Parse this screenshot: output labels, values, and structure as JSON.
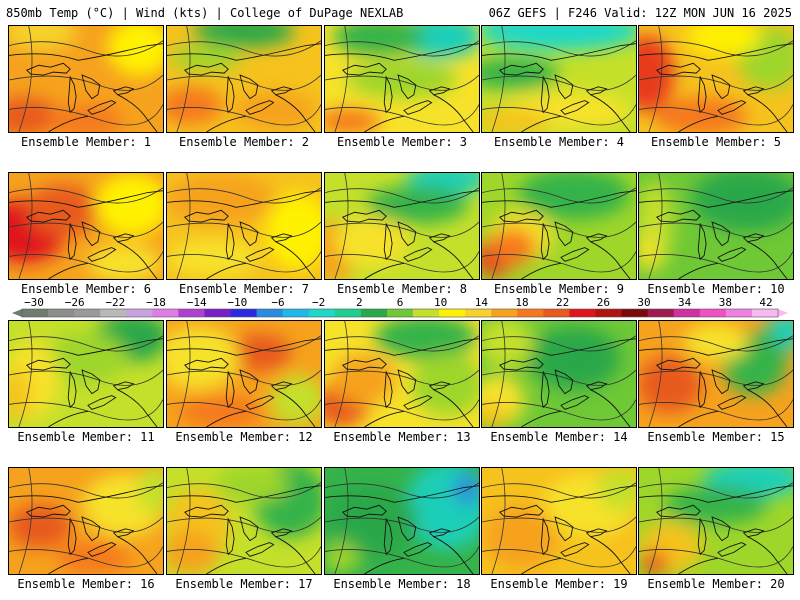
{
  "header": {
    "left": "850mb Temp (°C) | Wind (kts) | College of DuPage NEXLAB",
    "right": "06Z GEFS | F246 Valid: 12Z MON JUN 16 2025"
  },
  "panels": [
    {
      "label": "Ensemble Member: 1",
      "bg": "#f6a21e",
      "blobs": [
        [
          "#f7d22a",
          0.2,
          0.05,
          0.4,
          0.3
        ],
        [
          "#fff200",
          0.85,
          0.2,
          0.35,
          0.45
        ],
        [
          "#e85a1c",
          0.1,
          0.85,
          0.35,
          0.3
        ],
        [
          "#f6781c",
          0.5,
          0.9,
          0.4,
          0.25
        ]
      ]
    },
    {
      "label": "Ensemble Member: 2",
      "bg": "#f6c21e",
      "blobs": [
        [
          "#2aa84a",
          0.5,
          0.05,
          0.55,
          0.25
        ],
        [
          "#9ed62a",
          0.25,
          0.3,
          0.4,
          0.2
        ],
        [
          "#f6781c",
          0.15,
          0.75,
          0.35,
          0.3
        ],
        [
          "#f6a21e",
          0.7,
          0.8,
          0.45,
          0.3
        ]
      ]
    },
    {
      "label": "Ensemble Member: 3",
      "bg": "#f7e22a",
      "blobs": [
        [
          "#1fcfb8",
          0.75,
          0.1,
          0.45,
          0.35
        ],
        [
          "#36b34a",
          0.35,
          0.1,
          0.5,
          0.3
        ],
        [
          "#9ed62a",
          0.5,
          0.5,
          0.6,
          0.3
        ],
        [
          "#f6781c",
          0.15,
          0.9,
          0.35,
          0.2
        ]
      ]
    },
    {
      "label": "Ensemble Member: 4",
      "bg": "#c5e02a",
      "blobs": [
        [
          "#1fd8c8",
          0.5,
          0.05,
          0.9,
          0.3
        ],
        [
          "#36b34a",
          0.2,
          0.45,
          0.5,
          0.25
        ],
        [
          "#f7e22a",
          0.55,
          0.8,
          0.7,
          0.3
        ],
        [
          "#f6c21e",
          0.2,
          0.9,
          0.4,
          0.2
        ]
      ]
    },
    {
      "label": "Ensemble Member: 5",
      "bg": "#f6c21e",
      "blobs": [
        [
          "#e83a1c",
          0.05,
          0.45,
          0.3,
          0.6
        ],
        [
          "#9ed62a",
          0.85,
          0.3,
          0.35,
          0.5
        ],
        [
          "#fff200",
          0.55,
          0.1,
          0.4,
          0.3
        ],
        [
          "#f6781c",
          0.4,
          0.85,
          0.5,
          0.3
        ]
      ]
    },
    {
      "label": "Ensemble Member: 6",
      "bg": "#f6a21e",
      "blobs": [
        [
          "#e0141e",
          0.1,
          0.55,
          0.45,
          0.5
        ],
        [
          "#e85a1c",
          0.35,
          0.35,
          0.4,
          0.4
        ],
        [
          "#fff200",
          0.8,
          0.3,
          0.4,
          0.5
        ],
        [
          "#f7e22a",
          0.75,
          0.85,
          0.4,
          0.3
        ]
      ]
    },
    {
      "label": "Ensemble Member: 7",
      "bg": "#f6c21e",
      "blobs": [
        [
          "#f6a21e",
          0.35,
          0.25,
          0.6,
          0.4
        ],
        [
          "#fff200",
          0.85,
          0.55,
          0.35,
          0.6
        ],
        [
          "#f7e22a",
          0.3,
          0.8,
          0.5,
          0.3
        ]
      ]
    },
    {
      "label": "Ensemble Member: 8",
      "bg": "#c5e02a",
      "blobs": [
        [
          "#1fcfb8",
          0.8,
          0.05,
          0.45,
          0.25
        ],
        [
          "#36b34a",
          0.6,
          0.3,
          0.55,
          0.3
        ],
        [
          "#f6a21e",
          0.05,
          0.75,
          0.25,
          0.5
        ],
        [
          "#f7e22a",
          0.3,
          0.65,
          0.4,
          0.4
        ]
      ]
    },
    {
      "label": "Ensemble Member: 9",
      "bg": "#9ed62a",
      "blobs": [
        [
          "#36b34a",
          0.6,
          0.2,
          0.6,
          0.4
        ],
        [
          "#f7e22a",
          0.25,
          0.6,
          0.35,
          0.4
        ],
        [
          "#e83a1c",
          0.08,
          0.8,
          0.2,
          0.3
        ],
        [
          "#f6781c",
          0.2,
          0.7,
          0.25,
          0.3
        ]
      ]
    },
    {
      "label": "Ensemble Member: 10",
      "bg": "#6fc836",
      "blobs": [
        [
          "#2aa84a",
          0.7,
          0.25,
          0.6,
          0.5
        ],
        [
          "#c5e02a",
          0.1,
          0.5,
          0.2,
          0.7
        ],
        [
          "#f7e22a",
          0.05,
          0.75,
          0.12,
          0.3
        ]
      ]
    },
    {
      "label": "Ensemble Member: 11",
      "bg": "#c5e02a",
      "blobs": [
        [
          "#2aa84a",
          0.8,
          0.15,
          0.4,
          0.4
        ],
        [
          "#9ed62a",
          0.5,
          0.35,
          0.45,
          0.4
        ],
        [
          "#f7e22a",
          0.15,
          0.55,
          0.3,
          0.6
        ],
        [
          "#f6c21e",
          0.05,
          0.7,
          0.15,
          0.4
        ]
      ]
    },
    {
      "label": "Ensemble Member: 12",
      "bg": "#f6a21e",
      "blobs": [
        [
          "#e85a1c",
          0.6,
          0.3,
          0.35,
          0.3
        ],
        [
          "#f7e22a",
          0.2,
          0.35,
          0.45,
          0.5
        ],
        [
          "#c5e02a",
          0.85,
          0.75,
          0.3,
          0.4
        ],
        [
          "#f6781c",
          0.35,
          0.85,
          0.45,
          0.25
        ]
      ]
    },
    {
      "label": "Ensemble Member: 13",
      "bg": "#f7e22a",
      "blobs": [
        [
          "#36b34a",
          0.65,
          0.15,
          0.55,
          0.35
        ],
        [
          "#9ed62a",
          0.8,
          0.6,
          0.4,
          0.5
        ],
        [
          "#e85a1c",
          0.1,
          0.8,
          0.3,
          0.35
        ],
        [
          "#f6a21e",
          0.25,
          0.55,
          0.35,
          0.4
        ]
      ]
    },
    {
      "label": "Ensemble Member: 14",
      "bg": "#6fc836",
      "blobs": [
        [
          "#2aa84a",
          0.6,
          0.35,
          0.5,
          0.5
        ],
        [
          "#c5e02a",
          0.15,
          0.2,
          0.3,
          0.4
        ],
        [
          "#f7e22a",
          0.1,
          0.75,
          0.3,
          0.4
        ],
        [
          "#f6c21e",
          0.05,
          0.9,
          0.2,
          0.2
        ]
      ]
    },
    {
      "label": "Ensemble Member: 15",
      "bg": "#f6a21e",
      "blobs": [
        [
          "#1fcfb8",
          0.95,
          0.1,
          0.2,
          0.3
        ],
        [
          "#36b34a",
          0.75,
          0.4,
          0.35,
          0.5
        ],
        [
          "#e85a1c",
          0.2,
          0.6,
          0.35,
          0.45
        ],
        [
          "#f7e22a",
          0.5,
          0.2,
          0.35,
          0.3
        ]
      ]
    },
    {
      "label": "Ensemble Member: 16",
      "bg": "#f6a21e",
      "blobs": [
        [
          "#f7e22a",
          0.75,
          0.35,
          0.45,
          0.5
        ],
        [
          "#e85a1c",
          0.2,
          0.55,
          0.35,
          0.35
        ],
        [
          "#c5e02a",
          0.95,
          0.2,
          0.2,
          0.4
        ],
        [
          "#f6781c",
          0.55,
          0.85,
          0.4,
          0.25
        ]
      ]
    },
    {
      "label": "Ensemble Member: 17",
      "bg": "#c5e02a",
      "blobs": [
        [
          "#36b34a",
          0.8,
          0.3,
          0.4,
          0.6
        ],
        [
          "#f6c21e",
          0.2,
          0.55,
          0.35,
          0.6
        ],
        [
          "#f6a21e",
          0.15,
          0.8,
          0.3,
          0.35
        ],
        [
          "#9ed62a",
          0.55,
          0.15,
          0.4,
          0.3
        ]
      ]
    },
    {
      "label": "Ensemble Member: 18",
      "bg": "#36b34a",
      "blobs": [
        [
          "#1fcfb8",
          0.8,
          0.35,
          0.45,
          0.7
        ],
        [
          "#2a8cde",
          0.92,
          0.2,
          0.15,
          0.25
        ],
        [
          "#2aa84a",
          0.3,
          0.5,
          0.5,
          0.6
        ],
        [
          "#9ed62a",
          0.1,
          0.85,
          0.2,
          0.25
        ]
      ]
    },
    {
      "label": "Ensemble Member: 19",
      "bg": "#f6c21e",
      "blobs": [
        [
          "#f7e22a",
          0.7,
          0.35,
          0.5,
          0.5
        ],
        [
          "#f6a21e",
          0.25,
          0.65,
          0.4,
          0.5
        ],
        [
          "#c5e02a",
          0.9,
          0.2,
          0.25,
          0.35
        ]
      ]
    },
    {
      "label": "Ensemble Member: 20",
      "bg": "#9ed62a",
      "blobs": [
        [
          "#1fcfb8",
          0.75,
          0.1,
          0.55,
          0.3
        ],
        [
          "#36b34a",
          0.5,
          0.35,
          0.55,
          0.3
        ],
        [
          "#f6c21e",
          0.2,
          0.75,
          0.35,
          0.4
        ],
        [
          "#e85a1c",
          0.1,
          0.9,
          0.15,
          0.2
        ]
      ]
    }
  ],
  "colorbar": {
    "ticks": [
      "-30",
      "-26",
      "-22",
      "-18",
      "-14",
      "-10",
      "-6",
      "-2",
      "2",
      "6",
      "10",
      "14",
      "18",
      "22",
      "26",
      "30",
      "34",
      "38",
      "42"
    ],
    "colors": [
      "#6e7d6e",
      "#8a8f8a",
      "#9a9a9a",
      "#b8b8b8",
      "#c8a2dd",
      "#e07ce8",
      "#b040d0",
      "#7a1ec8",
      "#2a2ae0",
      "#2a8cde",
      "#1fb8e8",
      "#1fd8c8",
      "#1fcf90",
      "#2aa84a",
      "#6fc836",
      "#c5e02a",
      "#fff200",
      "#f7d22a",
      "#f6a21e",
      "#f6781c",
      "#e85a1c",
      "#e0141e",
      "#b01410",
      "#7a0a0a",
      "#a01a50",
      "#d030a0",
      "#f050c0",
      "#f080e0",
      "#f8b8f0"
    ]
  }
}
